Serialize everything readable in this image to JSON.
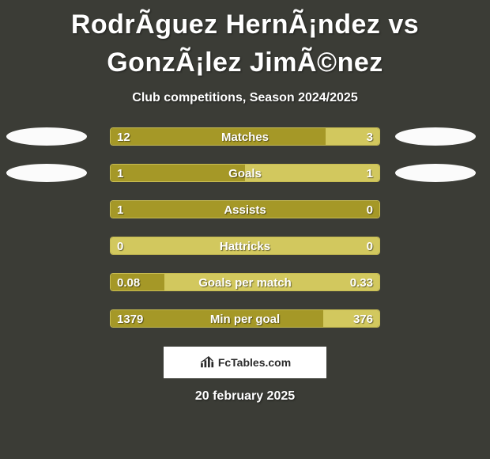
{
  "colors": {
    "background": "#3b3c36",
    "text_primary": "#ffffff",
    "bar_fill_a": "#a59827",
    "bar_fill_b": "#d2c85e",
    "bar_border": "#c8bd53",
    "ellipse_fill": "#fbfbfb",
    "attrib_bg": "#ffffff",
    "attrib_fg": "#2a2a2a"
  },
  "fonts": {
    "title_size": 34,
    "title_weight": 900,
    "subtitle_size": 16,
    "label_size": 15,
    "date_size": 16
  },
  "title": "RodrÃ­guez HernÃ¡ndez vs GonzÃ¡lez JimÃ©nez",
  "subtitle": "Club competitions, Season 2024/2025",
  "date": "20 february 2025",
  "attribution": "FcTables.com",
  "rows": [
    {
      "label": "Matches",
      "value_a": "12",
      "value_b": "3",
      "ratio_a": 0.8,
      "show_ellipses": true
    },
    {
      "label": "Goals",
      "value_a": "1",
      "value_b": "1",
      "ratio_a": 0.5,
      "show_ellipses": true
    },
    {
      "label": "Assists",
      "value_a": "1",
      "value_b": "0",
      "ratio_a": 1.0,
      "show_ellipses": false
    },
    {
      "label": "Hattricks",
      "value_a": "0",
      "value_b": "0",
      "ratio_a": 0.0,
      "show_ellipses": false
    },
    {
      "label": "Goals per match",
      "value_a": "0.08",
      "value_b": "0.33",
      "ratio_a": 0.2,
      "show_ellipses": false
    },
    {
      "label": "Min per goal",
      "value_a": "1379",
      "value_b": "376",
      "ratio_a": 0.79,
      "show_ellipses": false
    }
  ]
}
